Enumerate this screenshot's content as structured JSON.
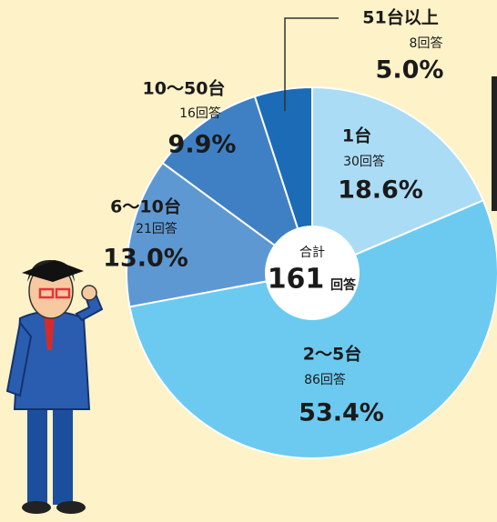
{
  "chart_data": {
    "type": "pie",
    "categories": [
      "1台",
      "2～5台",
      "6～10台",
      "10～50台",
      "51台以上"
    ],
    "values": [
      18.6,
      53.4,
      13.0,
      9.9,
      5.0
    ],
    "value_labels": [
      "18.6%",
      "53.4%",
      "13.0%",
      "9.9%",
      "5.0%"
    ],
    "count_labels": [
      "30回答",
      "86回答",
      "21回答",
      "16回答",
      "8回答"
    ],
    "colors": [
      "#aadcf5",
      "#6ccaf0",
      "#5d98d3",
      "#3f80c5",
      "#1b6bb6"
    ],
    "total_label": "合計",
    "total": 161,
    "total_unit": "回答"
  }
}
